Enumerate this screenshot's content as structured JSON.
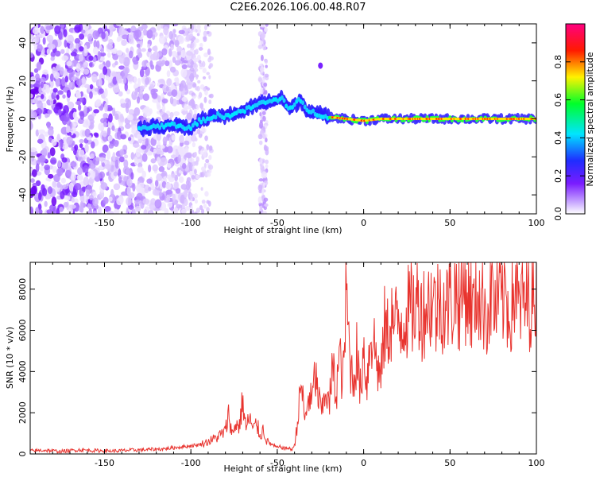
{
  "title": "C2E6.2026.106.00.48.R07",
  "chart_data": [
    {
      "type": "heatmap",
      "xlabel": "Height of straight line (km)",
      "ylabel": "Frequency (Hz)",
      "xlim": [
        -193,
        100
      ],
      "ylim": [
        -50,
        50
      ],
      "xticks": [
        -150,
        -100,
        -50,
        0,
        50,
        100
      ],
      "yticks": [
        -40,
        -20,
        0,
        20,
        40
      ],
      "colorbar": {
        "label": "Normalized spectral amplitude",
        "range": [
          0,
          1
        ],
        "ticks": [
          "0.0",
          "0.2",
          "0.4",
          "0.6",
          "0.8"
        ]
      },
      "ridge": [
        {
          "x": -130,
          "y": -5
        },
        {
          "x": -120,
          "y": -4
        },
        {
          "x": -110,
          "y": -3
        },
        {
          "x": -100,
          "y": -5
        },
        {
          "x": -95,
          "y": -1
        },
        {
          "x": -90,
          "y": 0
        },
        {
          "x": -85,
          "y": 2
        },
        {
          "x": -80,
          "y": 1
        },
        {
          "x": -75,
          "y": 3
        },
        {
          "x": -70,
          "y": 4
        },
        {
          "x": -65,
          "y": 6
        },
        {
          "x": -60,
          "y": 8
        },
        {
          "x": -55,
          "y": 9
        },
        {
          "x": -50,
          "y": 10
        },
        {
          "x": -47,
          "y": 11
        },
        {
          "x": -43,
          "y": 5
        },
        {
          "x": -40,
          "y": 7
        },
        {
          "x": -37,
          "y": 10
        },
        {
          "x": -33,
          "y": 5
        },
        {
          "x": -28,
          "y": 3
        },
        {
          "x": -20,
          "y": 1
        },
        {
          "x": -10,
          "y": 0
        },
        {
          "x": 0,
          "y": -1
        },
        {
          "x": 10,
          "y": 0
        },
        {
          "x": 20,
          "y": 0
        },
        {
          "x": 40,
          "y": 0
        },
        {
          "x": 60,
          "y": 0
        },
        {
          "x": 80,
          "y": 0
        },
        {
          "x": 100,
          "y": 0
        }
      ]
    },
    {
      "type": "line",
      "xlabel": "Height of straight line (km)",
      "ylabel": "SNR (10 * v/v)",
      "xlim": [
        -193,
        100
      ],
      "ylim": [
        0,
        9300
      ],
      "xticks": [
        -150,
        -100,
        -50,
        0,
        50,
        100
      ],
      "yticks": [
        0,
        2000,
        4000,
        6000,
        8000
      ],
      "color": "#e8332e",
      "series": [
        {
          "name": "SNR",
          "x": [
            -193,
            -185,
            -175,
            -165,
            -155,
            -145,
            -135,
            -125,
            -115,
            -110,
            -105,
            -100,
            -95,
            -90,
            -85,
            -80,
            -78,
            -76,
            -74,
            -72,
            -70,
            -68,
            -66,
            -64,
            -62,
            -60,
            -58,
            -56,
            -54,
            -52,
            -50,
            -48,
            -46,
            -44,
            -42,
            -40,
            -38,
            -36,
            -34,
            -32,
            -30,
            -28,
            -26,
            -24,
            -22,
            -20,
            -18,
            -16,
            -14,
            -12,
            -10,
            -8,
            -6,
            -4,
            -2,
            0,
            2,
            4,
            6,
            8,
            10,
            12,
            14,
            16,
            18,
            20,
            22,
            24,
            26,
            28,
            30,
            32,
            34,
            36,
            38,
            40,
            42,
            44,
            46,
            48,
            50,
            52,
            54,
            56,
            58,
            60,
            62,
            64,
            66,
            68,
            70,
            72,
            74,
            76,
            78,
            80,
            82,
            84,
            86,
            88,
            90,
            92,
            94,
            96,
            98,
            100
          ],
          "values": [
            150,
            180,
            120,
            200,
            160,
            140,
            180,
            210,
            250,
            300,
            350,
            400,
            450,
            600,
            800,
            1100,
            2000,
            900,
            1500,
            1300,
            2600,
            1200,
            1800,
            1100,
            1500,
            900,
            1200,
            600,
            500,
            400,
            300,
            350,
            250,
            300,
            200,
            400,
            1800,
            3500,
            1500,
            2800,
            2500,
            3900,
            2600,
            2000,
            3300,
            2200,
            4200,
            2900,
            4800,
            3400,
            7800,
            4600,
            3500,
            4900,
            3000,
            5200,
            3400,
            6000,
            5400,
            4300,
            3600,
            6100,
            5800,
            6600,
            6200,
            6400,
            6500,
            6700,
            6900,
            7100,
            7000,
            7600,
            6800,
            7200,
            7300,
            7600,
            6800,
            7700,
            7300,
            7000,
            7600,
            7400,
            8000,
            7200,
            8300,
            7800,
            7400,
            6800,
            8500,
            7100,
            7600,
            6600,
            8200,
            7000,
            7600,
            7300,
            8100,
            6800,
            7400,
            8300,
            6900,
            7700,
            7200,
            7600,
            7500,
            8500
          ]
        }
      ]
    }
  ]
}
